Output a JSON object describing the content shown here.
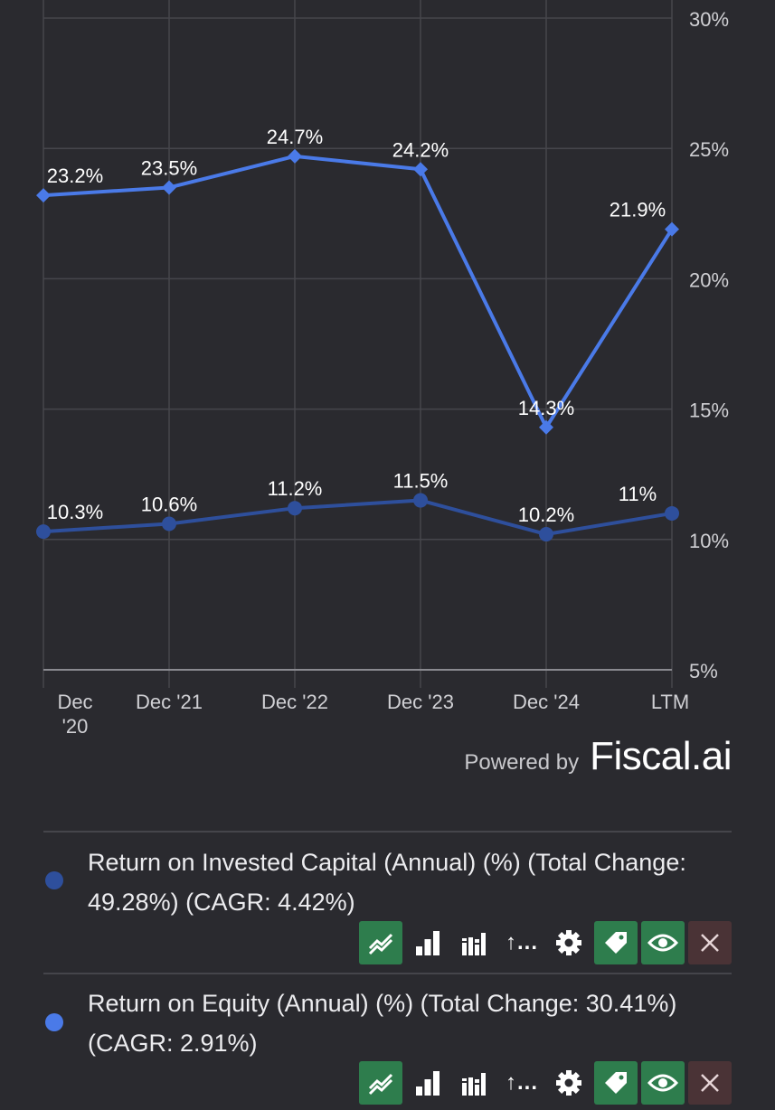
{
  "chart_data": {
    "type": "line",
    "x": [
      "Dec '20",
      "Dec '21",
      "Dec '22",
      "Dec '23",
      "Dec '24",
      "LTM"
    ],
    "x_tick_lines": [
      [
        "Dec",
        "'20"
      ],
      [
        "Dec '21"
      ],
      [
        "Dec '22"
      ],
      [
        "Dec '23"
      ],
      [
        "Dec '24"
      ],
      [
        "LTM"
      ]
    ],
    "series": [
      {
        "name": "Return on Equity (Annual) (%)",
        "values": [
          23.2,
          23.5,
          24.7,
          24.2,
          14.3,
          21.9
        ],
        "labels": [
          "23.2%",
          "23.5%",
          "24.7%",
          "24.2%",
          "14.3%",
          "21.9%"
        ],
        "color": "#4a7ae8",
        "marker": "diamond"
      },
      {
        "name": "Return on Invested Capital (Annual) (%)",
        "values": [
          10.3,
          10.6,
          11.2,
          11.5,
          10.2,
          11.0
        ],
        "labels": [
          "10.3%",
          "10.6%",
          "11.2%",
          "11.5%",
          "10.2%",
          "11%"
        ],
        "color": "#2e4f9c",
        "marker": "circle"
      }
    ],
    "yticks": [
      "30%",
      "25%",
      "20%",
      "15%",
      "10%",
      "5%"
    ],
    "ytick_values": [
      30,
      25,
      20,
      15,
      10,
      5
    ],
    "ylim": [
      5,
      30
    ],
    "yaxis_side": "right",
    "grid": true
  },
  "footer": {
    "powered_label": "Powered by",
    "brand": "Fiscal.ai"
  },
  "legend": [
    {
      "text": "Return on Invested Capital (Annual) (%) (Total Change: 49.28%) (CAGR: 4.42%)",
      "dot_color": "#2e4f9c"
    },
    {
      "text": "Return on Equity (Annual) (%) (Total Change: 30.41%) (CAGR: 2.91%)",
      "dot_color": "#4a7ae8"
    }
  ],
  "toolbar": {
    "buttons": [
      {
        "icon": "line-chart-icon",
        "style": "green"
      },
      {
        "icon": "bar-chart-icon",
        "style": "plain"
      },
      {
        "icon": "grouped-bar-chart-icon",
        "style": "plain"
      },
      {
        "icon": "sort-icon",
        "style": "plain",
        "text": "↑..."
      },
      {
        "icon": "gear-icon",
        "style": "plain"
      },
      {
        "icon": "tag-icon",
        "style": "green"
      },
      {
        "icon": "eye-icon",
        "style": "green"
      },
      {
        "icon": "close-icon",
        "style": "red"
      }
    ]
  }
}
